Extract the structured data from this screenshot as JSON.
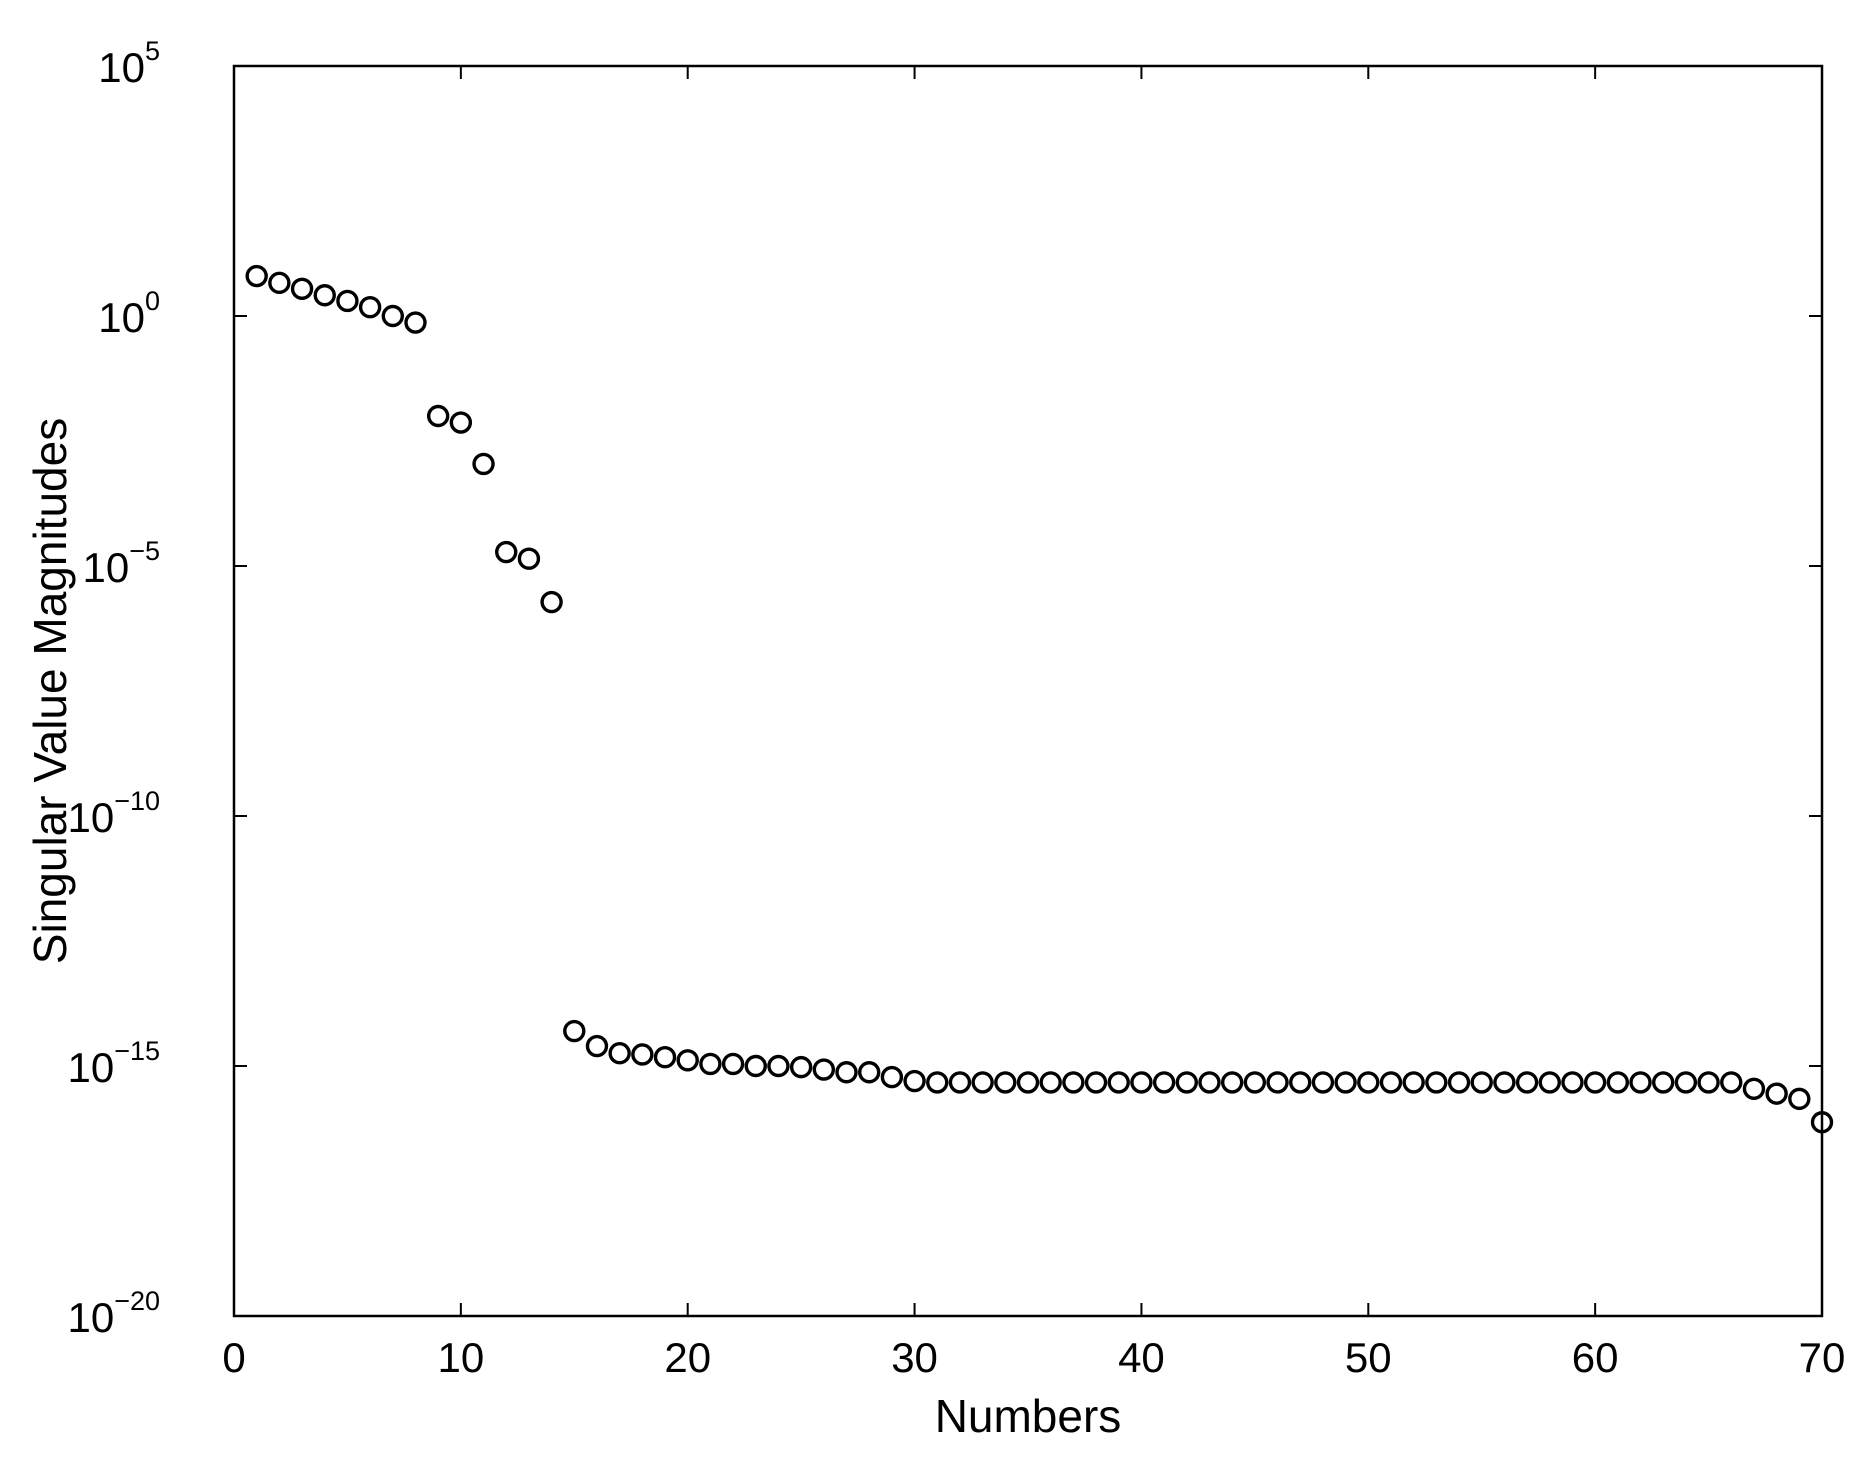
{
  "chart_data": {
    "type": "scatter",
    "title": "",
    "xlabel": "Numbers",
    "ylabel": "Singular Value Magnitudes",
    "xlim": [
      0,
      70
    ],
    "ylim": [
      1e-20,
      100000.0
    ],
    "yscale": "log",
    "grid": false,
    "xticks": [
      0,
      10,
      20,
      30,
      40,
      50,
      60,
      70
    ],
    "xtick_labels": [
      "0",
      "10",
      "20",
      "30",
      "40",
      "50",
      "60",
      "70"
    ],
    "yticks": [
      1e-20,
      1e-15,
      1e-10,
      1e-05,
      1,
      100000.0
    ],
    "ytick_labels": [
      {
        "base": "10",
        "exp": "−20"
      },
      {
        "base": "10",
        "exp": "−15"
      },
      {
        "base": "10",
        "exp": "−10"
      },
      {
        "base": "10",
        "exp": "−5"
      },
      {
        "base": "10",
        "exp": "0"
      },
      {
        "base": "10",
        "exp": "5"
      }
    ],
    "marker": "open-circle",
    "series": [
      {
        "x": [
          1,
          2,
          3,
          4,
          5,
          6,
          7,
          8,
          9,
          10,
          11,
          12,
          13,
          14,
          15,
          16,
          17,
          18,
          19,
          20,
          21,
          22,
          23,
          24,
          25,
          26,
          27,
          28,
          29,
          30,
          31,
          32,
          33,
          34,
          35,
          36,
          37,
          38,
          39,
          40,
          41,
          42,
          43,
          44,
          45,
          46,
          47,
          48,
          49,
          50,
          51,
          52,
          53,
          54,
          55,
          56,
          57,
          58,
          59,
          60,
          61,
          62,
          63,
          64,
          65,
          66,
          67,
          68,
          69,
          70
        ],
        "y": [
          6.3,
          4.6,
          3.5,
          2.6,
          2.0,
          1.5,
          1.0,
          0.74,
          0.01,
          0.0074,
          0.0011,
          1.9e-05,
          1.4e-05,
          1.9e-06,
          5e-15,
          2.5e-15,
          1.8e-15,
          1.7e-15,
          1.5e-15,
          1.3e-15,
          1.1e-15,
          1.1e-15,
          1e-15,
          1e-15,
          9.5e-16,
          8.5e-16,
          7.5e-16,
          7.5e-16,
          6e-16,
          5e-16,
          4.7e-16,
          4.7e-16,
          4.7e-16,
          4.7e-16,
          4.7e-16,
          4.7e-16,
          4.7e-16,
          4.7e-16,
          4.7e-16,
          4.7e-16,
          4.7e-16,
          4.7e-16,
          4.7e-16,
          4.7e-16,
          4.7e-16,
          4.7e-16,
          4.7e-16,
          4.7e-16,
          4.7e-16,
          4.7e-16,
          4.7e-16,
          4.7e-16,
          4.7e-16,
          4.7e-16,
          4.7e-16,
          4.7e-16,
          4.7e-16,
          4.7e-16,
          4.7e-16,
          4.7e-16,
          4.7e-16,
          4.7e-16,
          4.7e-16,
          4.7e-16,
          4.7e-16,
          4.7e-16,
          3.5e-16,
          2.8e-16,
          2.2e-16,
          7.5e-17
        ]
      }
    ]
  }
}
